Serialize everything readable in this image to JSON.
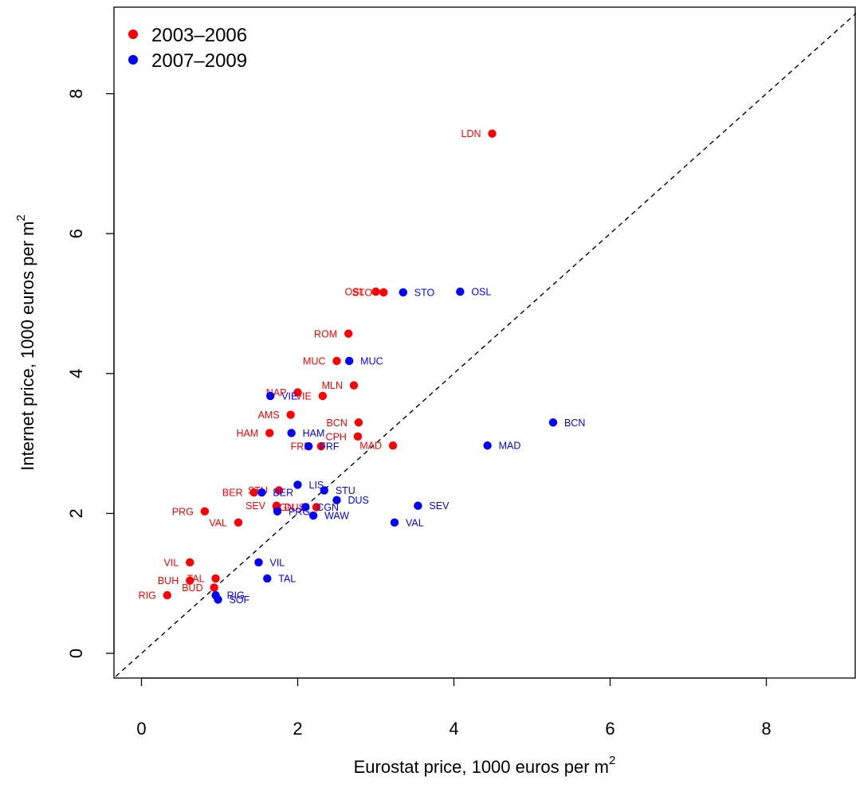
{
  "chart_data": {
    "type": "scatter",
    "xlabel": "Eurostat price, 1000 euros per m",
    "xlabel_sup": "2",
    "ylabel": "Internet price, 1000 euros per m",
    "ylabel_sup": "2",
    "xlim": [
      -0.33,
      9.15
    ],
    "ylim": [
      -0.35,
      9.3
    ],
    "x_ticks": [
      0,
      2,
      4,
      6,
      8
    ],
    "y_ticks": [
      0,
      2,
      4,
      6,
      8
    ],
    "reference_line": "y = x (dashed)",
    "legend_position": "top-left",
    "series": [
      {
        "name": "2003–2006",
        "color": "#ff0000",
        "points": [
          {
            "label": "LDN",
            "x": 4.49,
            "y": 7.43
          },
          {
            "label": "OSL",
            "x": 3.0,
            "y": 5.17
          },
          {
            "label": "STO",
            "x": 3.1,
            "y": 5.16
          },
          {
            "label": "ROM",
            "x": 2.65,
            "y": 4.57
          },
          {
            "label": "MUC",
            "x": 2.5,
            "y": 4.18
          },
          {
            "label": "MLN",
            "x": 2.72,
            "y": 3.83
          },
          {
            "label": "NAP",
            "x": 2.0,
            "y": 3.73
          },
          {
            "label": "VIE",
            "x": 2.32,
            "y": 3.68
          },
          {
            "label": "AMS",
            "x": 1.91,
            "y": 3.41
          },
          {
            "label": "BCN",
            "x": 2.78,
            "y": 3.3
          },
          {
            "label": "CPH",
            "x": 2.77,
            "y": 3.1
          },
          {
            "label": "HAM",
            "x": 1.64,
            "y": 3.15
          },
          {
            "label": "FRF",
            "x": 2.3,
            "y": 2.96
          },
          {
            "label": "MAD",
            "x": 3.22,
            "y": 2.97
          },
          {
            "label": "BER",
            "x": 1.44,
            "y": 2.3
          },
          {
            "label": "STU",
            "x": 1.76,
            "y": 2.33
          },
          {
            "label": "DUS",
            "x": 2.24,
            "y": 2.09
          },
          {
            "label": "SEV",
            "x": 1.73,
            "y": 2.11
          },
          {
            "label": "CGN",
            "x": 2.1,
            "y": 2.09
          },
          {
            "label": "PRG",
            "x": 0.81,
            "y": 2.03
          },
          {
            "label": "VAL",
            "x": 1.24,
            "y": 1.87
          },
          {
            "label": "VIL",
            "x": 0.62,
            "y": 1.3
          },
          {
            "label": "TAL",
            "x": 0.95,
            "y": 1.07
          },
          {
            "label": "BUH",
            "x": 0.62,
            "y": 1.04
          },
          {
            "label": "BUD",
            "x": 0.93,
            "y": 0.94
          },
          {
            "label": "RIG",
            "x": 0.33,
            "y": 0.83
          }
        ]
      },
      {
        "name": "2007–2009",
        "color": "#0000ff",
        "points": [
          {
            "label": "STO",
            "x": 3.35,
            "y": 5.16
          },
          {
            "label": "OSL",
            "x": 4.08,
            "y": 5.17
          },
          {
            "label": "MUC",
            "x": 2.66,
            "y": 4.18
          },
          {
            "label": "VIE",
            "x": 1.65,
            "y": 3.68
          },
          {
            "label": "BCN",
            "x": 5.27,
            "y": 3.3
          },
          {
            "label": "HAM",
            "x": 1.92,
            "y": 3.15
          },
          {
            "label": "FRF",
            "x": 2.14,
            "y": 2.96
          },
          {
            "label": "MAD",
            "x": 4.43,
            "y": 2.97
          },
          {
            "label": "LIS",
            "x": 2.0,
            "y": 2.41
          },
          {
            "label": "STU",
            "x": 2.34,
            "y": 2.33
          },
          {
            "label": "BER",
            "x": 1.54,
            "y": 2.3
          },
          {
            "label": "DUS",
            "x": 2.5,
            "y": 2.19
          },
          {
            "label": "SEV",
            "x": 3.54,
            "y": 2.11
          },
          {
            "label": "CGN",
            "x": 2.1,
            "y": 2.09
          },
          {
            "label": "PRG",
            "x": 1.74,
            "y": 2.03
          },
          {
            "label": "WAW",
            "x": 2.2,
            "y": 1.97
          },
          {
            "label": "VAL",
            "x": 3.24,
            "y": 1.87
          },
          {
            "label": "VIL",
            "x": 1.5,
            "y": 1.3
          },
          {
            "label": "TAL",
            "x": 1.61,
            "y": 1.07
          },
          {
            "label": "RIG",
            "x": 0.95,
            "y": 0.83
          },
          {
            "label": "SOF",
            "x": 0.98,
            "y": 0.77
          }
        ]
      }
    ]
  }
}
